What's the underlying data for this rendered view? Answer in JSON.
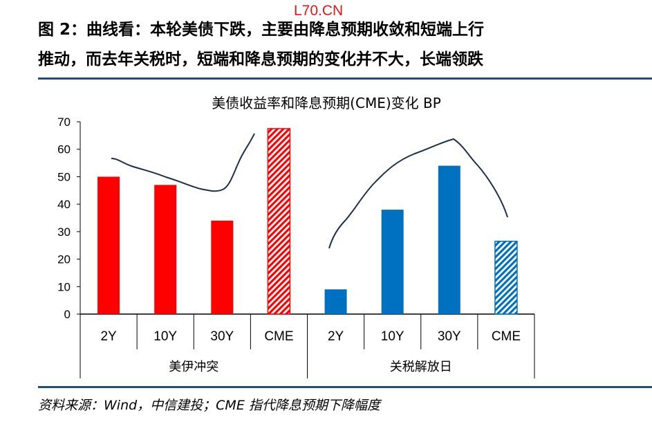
{
  "watermark": "L70.CN",
  "title_line1": "图 2：曲线看：本轮美债下跌，主要由降息预期收敛和短端上行",
  "title_line2": "推动，而去年关税时，短端和降息预期的变化并不大，长端领跌",
  "source": "资料来源：Wind，中信建投；CME 指代降息预期下降幅度",
  "colors": {
    "red": "#ff0000",
    "blue": "#0070c0",
    "rule": "#1f4e79"
  },
  "chart_data": {
    "type": "bar",
    "title": "美债收益率和降息预期(CME)变化 BP",
    "ylim": [
      0,
      70
    ],
    "yticks": [
      "0",
      "10",
      "20",
      "30",
      "40",
      "50",
      "60",
      "70"
    ],
    "groups": [
      "美伊冲突",
      "关税解放日"
    ],
    "categories": [
      "2Y",
      "10Y",
      "30Y",
      "CME",
      "2Y",
      "10Y",
      "30Y",
      "CME"
    ],
    "values": [
      50,
      47,
      34,
      67.5,
      9,
      38,
      54,
      26.5
    ],
    "hatched": [
      false,
      false,
      false,
      true,
      false,
      false,
      false,
      true
    ],
    "group_of": [
      0,
      0,
      0,
      0,
      1,
      1,
      1,
      1
    ]
  }
}
